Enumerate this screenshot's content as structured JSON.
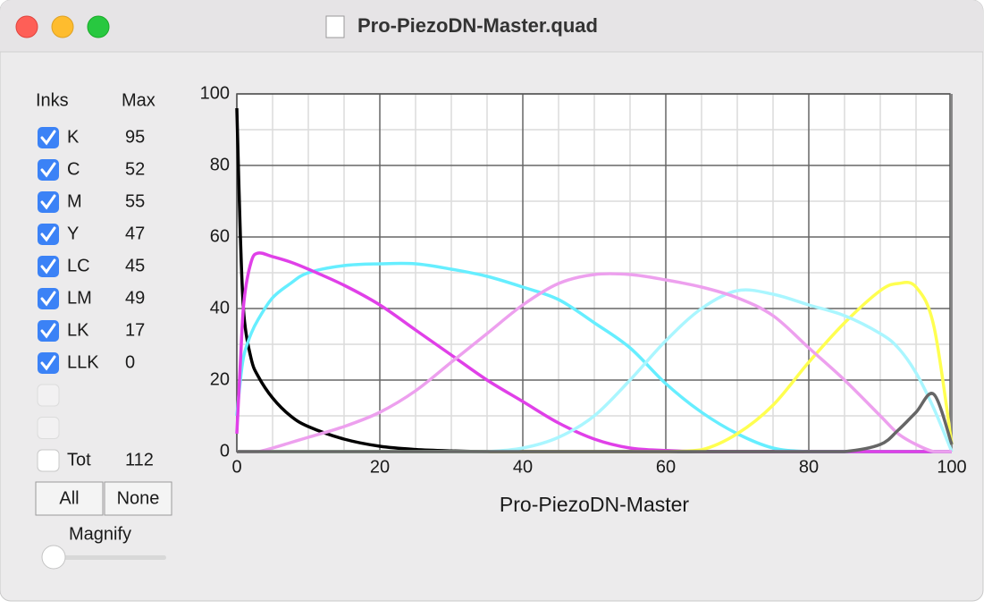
{
  "window_title": "Pro-PiezoDN-Master.quad",
  "inks": {
    "headers": [
      "Inks",
      "Max"
    ],
    "rows": [
      {
        "name": "K",
        "max": 95,
        "checked": true
      },
      {
        "name": "C",
        "max": 52,
        "checked": true
      },
      {
        "name": "M",
        "max": 55,
        "checked": true
      },
      {
        "name": "Y",
        "max": 47,
        "checked": true
      },
      {
        "name": "LC",
        "max": 45,
        "checked": true
      },
      {
        "name": "LM",
        "max": 49,
        "checked": true
      },
      {
        "name": "LK",
        "max": 17,
        "checked": true
      },
      {
        "name": "LLK",
        "max": 0,
        "checked": true
      }
    ],
    "empty_rows": 2,
    "total": {
      "name": "Tot",
      "value": 112,
      "checked": false
    }
  },
  "buttons": [
    "All",
    "None"
  ],
  "magnify": {
    "label": "Magnify"
  },
  "chart_data": {
    "type": "line",
    "x_label": "Pro-PiezoDN-Master",
    "x": [
      0,
      0.5,
      1,
      2,
      3,
      5,
      7.5,
      10,
      15,
      20,
      25,
      30,
      35,
      40,
      45,
      50,
      55,
      60,
      65,
      70,
      75,
      80,
      85,
      90,
      92.5,
      95,
      97.5,
      100
    ],
    "series": [
      {
        "name": "K",
        "color": "#000000",
        "values": [
          96,
          60,
          38,
          26,
          21,
          15,
          10,
          7,
          3.5,
          1.5,
          0.6,
          0.2,
          0,
          0,
          0,
          0,
          0,
          0,
          0,
          0,
          0,
          0,
          0,
          0,
          0,
          0,
          0,
          0
        ]
      },
      {
        "name": "C",
        "color": "#66eeff",
        "values": [
          10,
          20,
          27,
          33,
          37,
          43,
          47,
          50,
          52,
          52.5,
          52.5,
          51,
          49,
          46,
          42.5,
          36,
          29,
          19,
          11,
          5,
          1,
          0,
          0,
          0,
          0,
          0,
          0,
          0
        ]
      },
      {
        "name": "M",
        "color": "#e040e8",
        "values": [
          5,
          25,
          42,
          53,
          55.5,
          54.5,
          53,
          51,
          46.5,
          41,
          34,
          27,
          20,
          14,
          8,
          3.5,
          1,
          0.3,
          0,
          0,
          0,
          0,
          0,
          0,
          0,
          0,
          0,
          0
        ]
      },
      {
        "name": "Y",
        "color": "#ffff50",
        "values": [
          0,
          0,
          0,
          0,
          0,
          0,
          0,
          0,
          0,
          0,
          0,
          0,
          0,
          0,
          0,
          0,
          0,
          0,
          0.5,
          5,
          13,
          25,
          36,
          45,
          47,
          46,
          35,
          2
        ]
      },
      {
        "name": "LC",
        "color": "#aaf6ff",
        "values": [
          0,
          0,
          0,
          0,
          0,
          0,
          0,
          0,
          0,
          0,
          0,
          0,
          0,
          1,
          4,
          10,
          20,
          31,
          40,
          45,
          44,
          41,
          38,
          33,
          29,
          22,
          12,
          0
        ]
      },
      {
        "name": "LM",
        "color": "#eda0ee",
        "values": [
          0,
          0,
          0,
          0,
          0,
          1,
          2.5,
          4,
          7,
          11,
          17,
          25,
          33,
          41,
          47,
          49.5,
          49.5,
          48,
          46,
          43,
          38,
          29,
          20,
          10,
          5,
          2,
          0,
          0
        ]
      },
      {
        "name": "LK",
        "color": "#666666",
        "values": [
          0,
          0,
          0,
          0,
          0,
          0,
          0,
          0,
          0,
          0,
          0,
          0,
          0,
          0,
          0,
          0,
          0,
          0,
          0,
          0,
          0,
          0,
          0,
          2,
          6,
          11,
          16,
          2
        ]
      }
    ],
    "xlim": [
      0,
      100
    ],
    "xticks": [
      0,
      20,
      40,
      60,
      80,
      100
    ],
    "ylim": [
      0,
      100
    ],
    "yticks": [
      0,
      20,
      40,
      60,
      80,
      100
    ],
    "grid": true
  }
}
